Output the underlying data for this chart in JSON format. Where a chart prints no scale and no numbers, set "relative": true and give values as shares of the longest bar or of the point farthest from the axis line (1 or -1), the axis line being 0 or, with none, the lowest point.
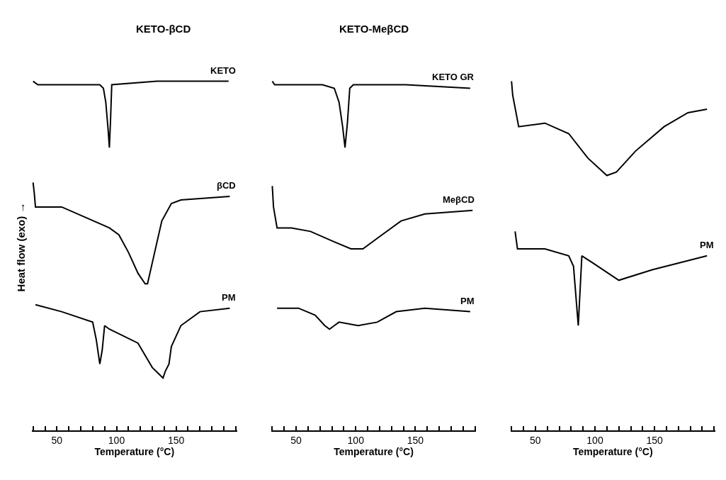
{
  "chart_data": [
    {
      "type": "line",
      "title": "KETO-βCD",
      "xlabel": "Temperature (°C)",
      "ylabel": "Heat flow (exo) →",
      "relative": true,
      "legend": false,
      "marker": "none",
      "line_style": "solid",
      "xlim": [
        29,
        201
      ],
      "xticks": [
        {
          "value": 30,
          "label": null
        },
        {
          "value": 40,
          "label": null
        },
        50,
        {
          "value": 60,
          "label": null
        },
        {
          "value": 70,
          "label": null
        },
        {
          "value": 80,
          "label": null
        },
        {
          "value": 90,
          "label": null
        },
        100,
        {
          "value": 110,
          "label": null
        },
        {
          "value": 120,
          "label": null
        },
        {
          "value": 130,
          "label": null
        },
        {
          "value": 140,
          "label": null
        },
        150,
        {
          "value": 160,
          "label": null
        },
        {
          "value": 170,
          "label": null
        },
        {
          "value": 180,
          "label": null
        },
        {
          "value": 190,
          "label": null
        },
        {
          "value": 200,
          "label": null
        }
      ],
      "series": [
        {
          "name": "KETO",
          "color": "#000000",
          "x": [
            30,
            34,
            54,
            86,
            89,
            91,
            93,
            94,
            95,
            96,
            134,
            194
          ],
          "values": [
            1.0,
            0.99,
            0.99,
            0.99,
            0.98,
            0.94,
            0.86,
            0.81,
            0.89,
            0.99,
            1.0,
            1.0
          ]
        },
        {
          "name": "βCD",
          "color": "#000000",
          "x": [
            30,
            31,
            32,
            54,
            74,
            94,
            102,
            110,
            118,
            124,
            126,
            132,
            138,
            146,
            154,
            195
          ],
          "values": [
            0.71,
            0.68,
            0.64,
            0.64,
            0.61,
            0.58,
            0.56,
            0.51,
            0.45,
            0.42,
            0.42,
            0.51,
            0.6,
            0.65,
            0.66,
            0.67
          ]
        },
        {
          "name": "PM",
          "color": "#000000",
          "x": [
            32,
            54,
            80,
            83,
            86,
            88,
            90,
            94,
            118,
            130,
            136,
            139,
            141,
            144,
            146,
            154,
            170,
            195
          ],
          "values": [
            0.36,
            0.34,
            0.31,
            0.26,
            0.19,
            0.23,
            0.3,
            0.29,
            0.25,
            0.18,
            0.16,
            0.15,
            0.17,
            0.19,
            0.24,
            0.3,
            0.34,
            0.35
          ]
        }
      ]
    },
    {
      "type": "line",
      "title": "KETO-MeβCD",
      "xlabel": "Temperature (°C)",
      "relative": true,
      "legend": false,
      "marker": "none",
      "line_style": "solid",
      "xlim": [
        29,
        201
      ],
      "xticks": [
        {
          "value": 30,
          "label": null
        },
        {
          "value": 40,
          "label": null
        },
        50,
        {
          "value": 60,
          "label": null
        },
        {
          "value": 70,
          "label": null
        },
        {
          "value": 80,
          "label": null
        },
        {
          "value": 90,
          "label": null
        },
        100,
        {
          "value": 110,
          "label": null
        },
        {
          "value": 120,
          "label": null
        },
        {
          "value": 130,
          "label": null
        },
        {
          "value": 140,
          "label": null
        },
        150,
        {
          "value": 160,
          "label": null
        },
        {
          "value": 170,
          "label": null
        },
        {
          "value": 180,
          "label": null
        },
        {
          "value": 190,
          "label": null
        },
        {
          "value": 200,
          "label": null
        }
      ],
      "series": [
        {
          "name": "KETO GR",
          "color": "#000000",
          "x": [
            30,
            32,
            72,
            82,
            86,
            89,
            91,
            93,
            95,
            98,
            142,
            196
          ],
          "values": [
            1.0,
            0.99,
            0.99,
            0.98,
            0.94,
            0.87,
            0.81,
            0.88,
            0.98,
            0.99,
            0.99,
            0.98
          ]
        },
        {
          "name": "MeβCD",
          "color": "#000000",
          "x": [
            30,
            31,
            34,
            46,
            62,
            82,
            96,
            106,
            122,
            138,
            158,
            198
          ],
          "values": [
            0.7,
            0.64,
            0.58,
            0.58,
            0.57,
            0.54,
            0.52,
            0.52,
            0.56,
            0.6,
            0.62,
            0.63
          ]
        },
        {
          "name": "PM",
          "color": "#000000",
          "x": [
            34,
            52,
            66,
            74,
            78,
            82,
            86,
            102,
            118,
            134,
            158,
            196
          ],
          "values": [
            0.35,
            0.35,
            0.33,
            0.3,
            0.29,
            0.3,
            0.31,
            0.3,
            0.31,
            0.34,
            0.35,
            0.34
          ]
        }
      ]
    },
    {
      "type": "line",
      "xlabel": "Temperature (°C)",
      "relative": true,
      "legend": false,
      "marker": "none",
      "line_style": "solid",
      "xlim": [
        29,
        201
      ],
      "xticks": [
        {
          "value": 30,
          "label": null
        },
        {
          "value": 40,
          "label": null
        },
        50,
        {
          "value": 60,
          "label": null
        },
        {
          "value": 70,
          "label": null
        },
        {
          "value": 80,
          "label": null
        },
        {
          "value": 90,
          "label": null
        },
        100,
        {
          "value": 110,
          "label": null
        },
        {
          "value": 120,
          "label": null
        },
        {
          "value": 130,
          "label": null
        },
        {
          "value": 140,
          "label": null
        },
        150,
        {
          "value": 160,
          "label": null
        },
        {
          "value": 170,
          "label": null
        },
        {
          "value": 180,
          "label": null
        },
        {
          "value": 190,
          "label": null
        },
        {
          "value": 200,
          "label": null
        }
      ],
      "series": [
        {
          "color": "#000000",
          "x": [
            30,
            31,
            36,
            58,
            78,
            94,
            110,
            118,
            134,
            158,
            178,
            194
          ],
          "values": [
            1.0,
            0.96,
            0.87,
            0.88,
            0.85,
            0.78,
            0.73,
            0.74,
            0.8,
            0.87,
            0.91,
            0.92
          ]
        },
        {
          "name": "PM",
          "color": "#000000",
          "x": [
            33,
            35,
            58,
            78,
            82,
            86,
            89,
            98,
            120,
            148,
            194
          ],
          "values": [
            0.57,
            0.52,
            0.52,
            0.5,
            0.47,
            0.3,
            0.5,
            0.48,
            0.43,
            0.46,
            0.5
          ]
        }
      ]
    }
  ]
}
